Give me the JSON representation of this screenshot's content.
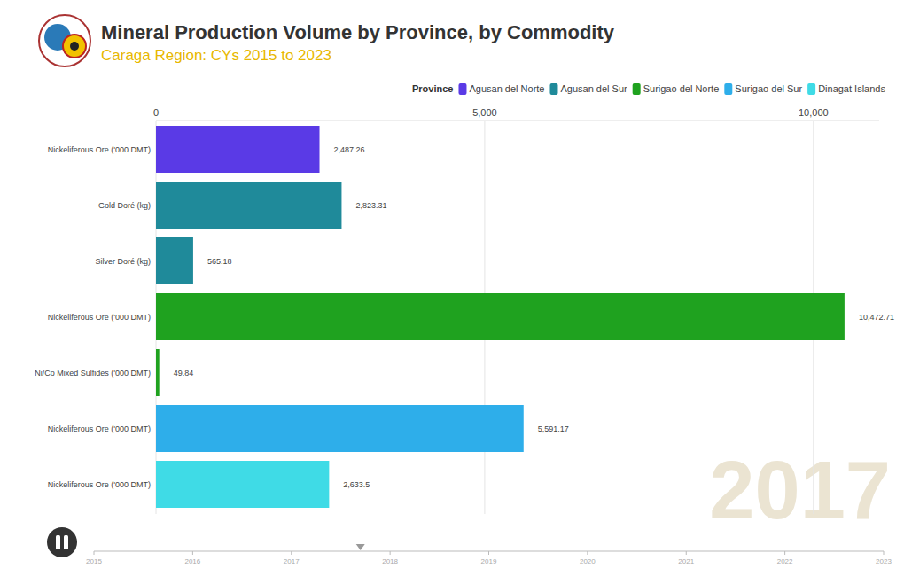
{
  "chart_data": {
    "type": "bar",
    "orientation": "horizontal",
    "title": "Mineral Production Volume by Province, by Commodity",
    "subtitle": "Caraga Region: CYs 2015 to 2023",
    "legend_title": "Province",
    "legend": "top-right",
    "data_labels": true,
    "grid": true,
    "categories": [
      "Nickeliferous Ore ('000 DMT)",
      "Gold Doré (kg)",
      "Silver Doré (kg)",
      "Nickeliferous Ore ('000 DMT)",
      "Ni/Co Mixed Sulfides ('000 DMT)",
      "Nickeliferous Ore ('000 DMT)",
      "Nickeliferous Ore ('000 DMT)"
    ],
    "series": [
      {
        "name": "Agusan del Norte",
        "color": "#5a3ae6",
        "values": [
          2487.26,
          null,
          null,
          null,
          null,
          null,
          null
        ],
        "value_labels": [
          "2,487.26",
          null,
          null,
          null,
          null,
          null,
          null
        ]
      },
      {
        "name": "Agusan del Sur",
        "color": "#1f8a9a",
        "values": [
          null,
          2823.31,
          565.18,
          null,
          null,
          null,
          null
        ],
        "value_labels": [
          null,
          "2,823.31",
          "565.18",
          null,
          null,
          null,
          null
        ]
      },
      {
        "name": "Surigao del Norte",
        "color": "#1fa21f",
        "values": [
          null,
          null,
          null,
          10472.71,
          49.84,
          null,
          null
        ],
        "value_labels": [
          null,
          null,
          null,
          "10,472.71",
          "49.84",
          null,
          null
        ]
      },
      {
        "name": "Surigao del Sur",
        "color": "#2eaeea",
        "values": [
          null,
          null,
          null,
          null,
          null,
          5591.17,
          null
        ],
        "value_labels": [
          null,
          null,
          null,
          null,
          null,
          "5,591.17",
          null
        ]
      },
      {
        "name": "Dinagat Islands",
        "color": "#3fdbe6",
        "values": [
          null,
          null,
          null,
          null,
          null,
          null,
          2633.5
        ],
        "value_labels": [
          null,
          null,
          null,
          null,
          null,
          null,
          "2,633.5"
        ]
      }
    ],
    "xlim": [
      0,
      11000
    ],
    "xticks": [
      0,
      {
        "value": 5000,
        "label": "5,000"
      },
      {
        "value": 10000,
        "label": "10,000"
      }
    ],
    "watermark": "2017",
    "timeline": {
      "years": [
        2015,
        2016,
        2017,
        2018,
        2019,
        2020,
        2021,
        2022,
        2023
      ],
      "position": 2017.7
    }
  }
}
